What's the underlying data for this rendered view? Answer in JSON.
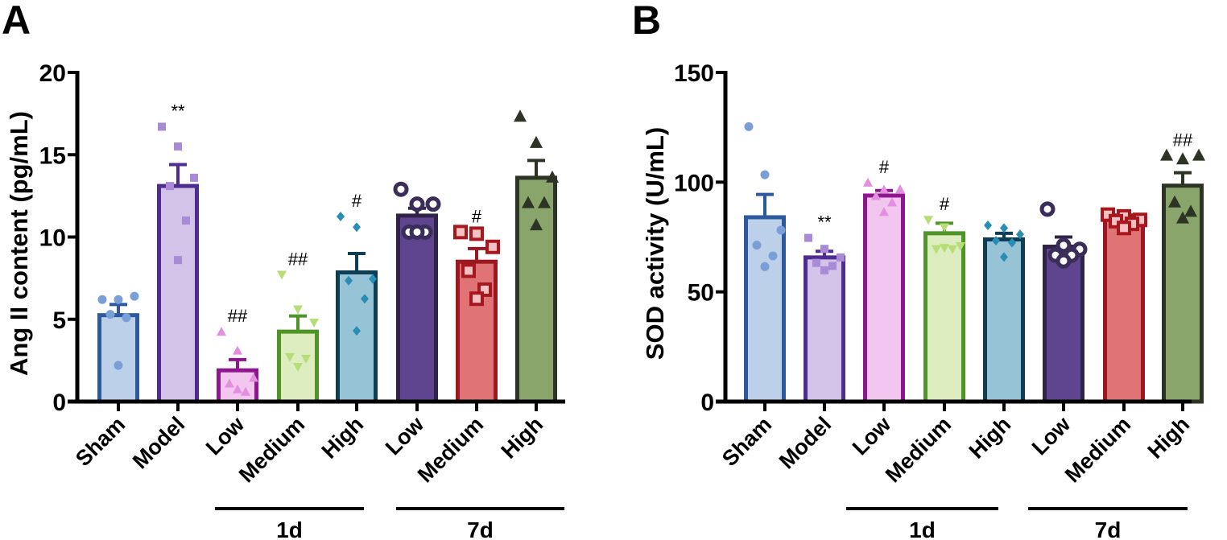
{
  "chart_data": [
    {
      "panel": "A",
      "type": "bar",
      "ylabel": "Ang II content (pg/mL)",
      "ylim": [
        0,
        20
      ],
      "yticks": [
        0,
        5,
        10,
        15,
        20
      ],
      "categories": [
        "Sham",
        "Model",
        "Low",
        "Medium",
        "High",
        "Low",
        "Medium",
        "High"
      ],
      "groups": [
        {
          "label": "1d",
          "from": 2,
          "to": 4
        },
        {
          "label": "7d",
          "from": 5,
          "to": 7
        }
      ],
      "values": [
        5.25,
        13.1,
        1.9,
        4.25,
        7.85,
        11.3,
        8.5,
        13.6
      ],
      "sem_upper": [
        5.9,
        14.4,
        2.55,
        5.2,
        9.0,
        11.75,
        9.3,
        14.65
      ],
      "annotations": [
        "",
        "**",
        "##",
        "##",
        "#",
        "",
        "#",
        ""
      ],
      "points": [
        [
          6.2,
          6.2,
          6.4,
          5.3,
          5.1,
          2.2
        ],
        [
          16.7,
          15.5,
          13.6,
          13.1,
          11.0,
          8.6
        ],
        [
          4.25,
          3.1,
          1.45,
          1.1,
          0.6,
          0.75
        ],
        [
          7.7,
          5.6,
          4.8,
          2.7,
          2.6,
          2.1
        ],
        [
          11.25,
          10.6,
          7.45,
          7.35,
          6.25,
          4.3
        ],
        [
          12.9,
          12.0,
          12.0,
          10.3,
          10.3,
          10.3
        ],
        [
          10.3,
          10.2,
          9.4,
          7.95,
          6.8,
          6.25
        ],
        [
          17.3,
          15.7,
          13.6,
          12.05,
          12.05,
          10.7
        ]
      ]
    },
    {
      "panel": "B",
      "type": "bar",
      "ylabel": "SOD activity (U/mL)",
      "ylim": [
        0,
        150
      ],
      "yticks": [
        0,
        50,
        100,
        150
      ],
      "categories": [
        "Sham",
        "Model",
        "Low",
        "Medium",
        "High",
        "Low",
        "Medium",
        "High"
      ],
      "groups": [
        {
          "label": "1d",
          "from": 2,
          "to": 4
        },
        {
          "label": "7d",
          "from": 5,
          "to": 7
        }
      ],
      "values": [
        84,
        65.7,
        93.9,
        76.7,
        73.9,
        70.6,
        84.2,
        98.4
      ],
      "sem_upper": [
        94.4,
        68.5,
        96.2,
        81.3,
        76.7,
        75,
        85,
        104.3
      ],
      "annotations": [
        "",
        "**",
        "#",
        "#",
        "",
        "",
        "",
        "##"
      ],
      "points": [
        [
          125.3,
          103.4,
          78.1,
          71.3,
          66.4,
          61.5
        ],
        [
          74.6,
          69.6,
          65.7,
          63.2,
          61.8,
          59.8
        ],
        [
          99.8,
          96.6,
          96.8,
          93.7,
          90.8,
          86.4
        ],
        [
          82.8,
          79.4,
          70.8,
          69.4,
          69.4,
          70
        ],
        [
          80.3,
          79.1,
          76.2,
          73.3,
          72.4,
          65.9
        ],
        [
          87.7,
          71.2,
          69.4,
          66.7,
          66.7,
          64.1
        ],
        [
          85.2,
          84.4,
          82.8,
          82.2,
          81,
          79.1
        ],
        [
          112,
          110.3,
          112,
          90.7,
          86.4,
          83.4
        ]
      ]
    }
  ],
  "styles": {
    "fills": [
      "#bcd0ea",
      "#d3c3e8",
      "#f2c6ef",
      "#deedc0",
      "#96c3d6",
      "#5f4590",
      "#df7376",
      "#89a56b"
    ],
    "strokes": [
      "#2d5a9e",
      "#4f2c90",
      "#8e178f",
      "#4e9427",
      "#0e3d56",
      "#2f2448",
      "#9b1820",
      "#2d3426"
    ],
    "point_colors": [
      "#7a9fd6",
      "#a98ad6",
      "#e48ee0",
      "#b6dd78",
      "#2a8db5",
      "#3a2d5a",
      "#a8161e",
      "#2d3426"
    ],
    "markers": [
      "circle",
      "square",
      "triangle",
      "triangle-down",
      "diamond",
      "circle-large",
      "square-open",
      "triangle-large"
    ]
  }
}
